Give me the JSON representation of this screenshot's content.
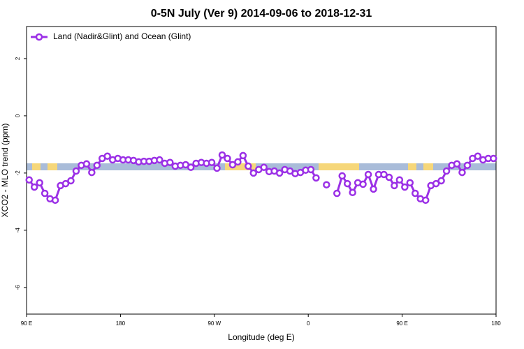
{
  "chart_data": {
    "type": "line",
    "title": "0-5N July (Ver 9)   2014-09-06 to 2018-12-31",
    "xlabel": "Longitude (deg E)",
    "ylabel": "XCO2 - MLO trend (ppm)",
    "xlim": [
      90,
      540
    ],
    "ylim": [
      -6.93,
      3.12
    ],
    "xticks": [
      {
        "value": 90,
        "label": "90 E"
      },
      180,
      {
        "value": 270,
        "label": "90 W"
      },
      {
        "value": 360,
        "label": "0"
      },
      {
        "value": 450,
        "label": "90 E"
      },
      {
        "value": 540,
        "label": "180"
      }
    ],
    "yticks": [
      2,
      0,
      -2,
      -4,
      -6
    ],
    "legend": "top-left",
    "x": [
      92.5,
      97.5,
      102.5,
      107.5,
      112.5,
      117.5,
      122.5,
      127.5,
      132.5,
      137.5,
      142.5,
      147.5,
      152.5,
      157.5,
      162.5,
      167.5,
      172.5,
      177.5,
      182.5,
      187.5,
      192.5,
      197.5,
      202.5,
      207.5,
      212.5,
      217.5,
      222.5,
      227.5,
      232.5,
      237.5,
      242.5,
      247.5,
      252.5,
      257.5,
      262.5,
      267.5,
      272.5,
      277.5,
      282.5,
      287.5,
      292.5,
      297.5,
      302.5,
      307.5,
      312.5,
      317.5,
      322.5,
      327.5,
      332.5,
      337.5,
      342.5,
      347.5,
      352.5,
      357.5,
      362.5,
      367.5,
      372.5,
      377.5,
      382.5,
      387.5,
      392.5,
      397.5,
      402.5,
      407.5,
      412.5,
      417.5,
      422.5,
      427.5,
      432.5,
      437.5,
      442.5,
      447.5,
      452.5,
      457.5,
      462.5,
      467.5,
      472.5,
      477.5,
      482.5,
      487.5,
      492.5,
      497.5,
      502.5,
      507.5,
      512.5,
      517.5,
      522.5,
      527.5,
      532.5,
      537.5
    ],
    "series": [
      {
        "name": "Land (Nadir&Glint) and Ocean (Glint)",
        "color": "#9b30e6",
        "values": [
          -2.24,
          -2.49,
          -2.34,
          -2.71,
          -2.9,
          -2.95,
          -2.44,
          -2.37,
          -2.27,
          -1.93,
          -1.73,
          -1.68,
          -1.98,
          -1.73,
          -1.49,
          -1.41,
          -1.54,
          -1.49,
          -1.54,
          -1.54,
          -1.56,
          -1.61,
          -1.59,
          -1.59,
          -1.56,
          -1.54,
          -1.66,
          -1.63,
          -1.76,
          -1.73,
          -1.71,
          -1.8,
          -1.66,
          -1.63,
          -1.66,
          -1.63,
          -1.83,
          -1.37,
          -1.49,
          -1.71,
          -1.61,
          -1.39,
          -1.76,
          -2.0,
          -1.88,
          -1.8,
          -1.95,
          -1.93,
          -2.0,
          -1.88,
          -1.93,
          -2.02,
          -1.98,
          -1.9,
          -1.88,
          -2.17,
          null,
          -2.41,
          null,
          -2.71,
          -2.1,
          -2.37,
          -2.68,
          -2.34,
          -2.39,
          -2.05,
          -2.56,
          -2.05,
          -2.05,
          -2.15,
          -2.44,
          -2.24,
          -2.49,
          -2.34,
          -2.71,
          -2.9,
          -2.95,
          -2.44,
          -2.37,
          -2.27,
          -1.93,
          -1.73,
          -1.68,
          -1.98,
          -1.73,
          -1.49,
          -1.41,
          -1.54,
          -1.49,
          -1.49
        ]
      }
    ]
  }
}
